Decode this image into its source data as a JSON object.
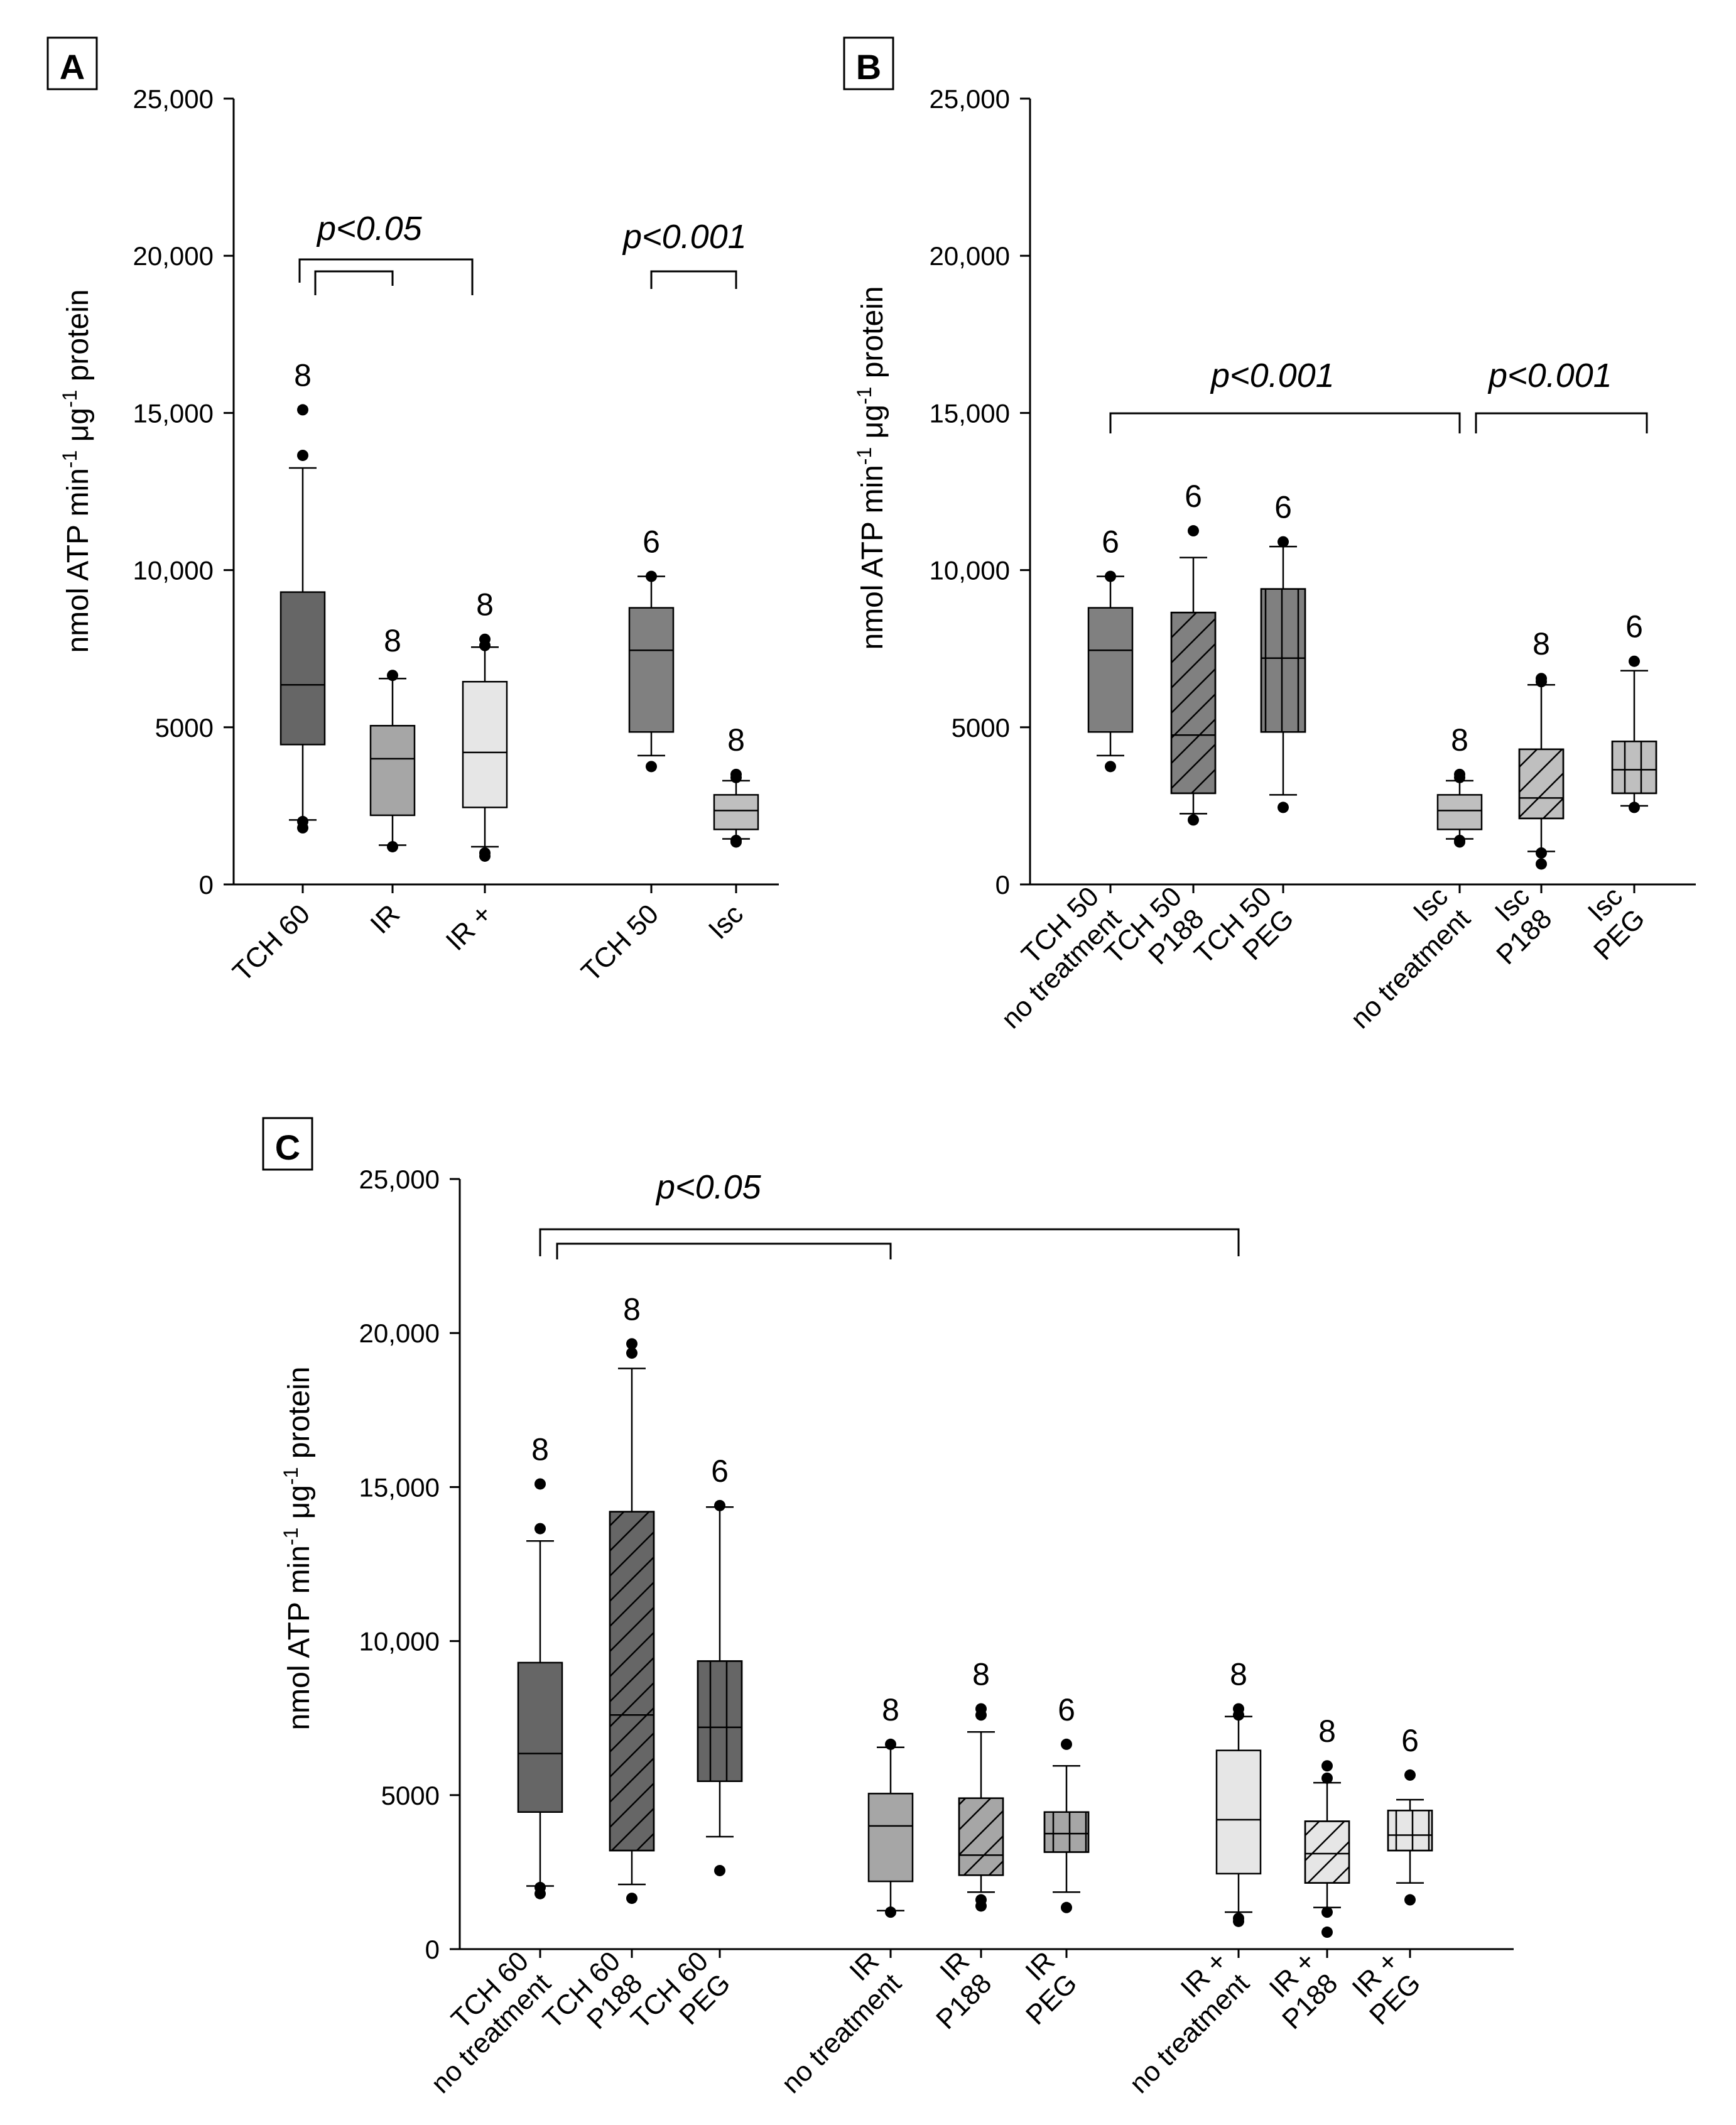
{
  "figure_caption": "",
  "colors": {
    "tch": "#666666",
    "ir": "#a6a6a6",
    "irplus": "#e6e6e6",
    "isc": "#bfbfbf",
    "axis": "#000000"
  },
  "chart_data": [
    {
      "panel": "A",
      "type": "boxplot",
      "ylabel": "nmol ATP min -1 μg -1 protein",
      "ylim": [
        0,
        25000
      ],
      "yticks": [
        0,
        5000,
        10000,
        15000,
        20000,
        25000
      ],
      "ytick_labels": [
        "0",
        "5000",
        "10,000",
        "15,000",
        "20,000",
        "25,000"
      ],
      "series": [
        {
          "label": "TCH 60",
          "n": "8",
          "q1": 4450,
          "median": 6350,
          "q3": 9300,
          "whisker_low": 2050,
          "whisker_high": 13250,
          "outliers": [
            1800,
            2000,
            13650,
            15100
          ],
          "color": "#666666",
          "pattern": "none"
        },
        {
          "label": "IR",
          "n": "8",
          "q1": 2200,
          "median": 4000,
          "q3": 5050,
          "whisker_low": 1250,
          "whisker_high": 6550,
          "outliers": [
            1200,
            6650
          ],
          "color": "#a6a6a6",
          "pattern": "none"
        },
        {
          "label": "IR +",
          "n": "8",
          "q1": 2450,
          "median": 4200,
          "q3": 6450,
          "whisker_low": 1200,
          "whisker_high": 7550,
          "outliers": [
            900,
            1000,
            7600,
            7800
          ],
          "color": "#e6e6e6",
          "pattern": "none"
        },
        {
          "label": "TCH 50",
          "n": "6",
          "q1": 4850,
          "median": 7450,
          "q3": 8800,
          "whisker_low": 4100,
          "whisker_high": 9800,
          "outliers": [
            3750,
            9800
          ],
          "color": "#808080",
          "pattern": "none"
        },
        {
          "label": "Isc",
          "n": "8",
          "q1": 1750,
          "median": 2350,
          "q3": 2850,
          "whisker_low": 1450,
          "whisker_high": 3300,
          "outliers": [
            1350,
            1400,
            3400,
            3500
          ],
          "color": "#bfbfbf",
          "pattern": "none"
        }
      ],
      "annotations": [
        {
          "text": "p<0.05",
          "kind": "bracket-nested"
        },
        {
          "text": "p<0.001",
          "kind": "bracket"
        }
      ]
    },
    {
      "panel": "B",
      "type": "boxplot",
      "ylabel": "nmol ATP min -1 μg -1 protein",
      "ylim": [
        0,
        25000
      ],
      "yticks": [
        0,
        5000,
        10000,
        15000,
        20000,
        25000
      ],
      "ytick_labels": [
        "0",
        "5000",
        "10,000",
        "15,000",
        "20,000",
        "25,000"
      ],
      "series": [
        {
          "label": [
            "TCH 50",
            "no treatment"
          ],
          "n": "6",
          "q1": 4850,
          "median": 7450,
          "q3": 8800,
          "whisker_low": 4100,
          "whisker_high": 9800,
          "outliers": [
            3750,
            9800
          ],
          "color": "#808080",
          "pattern": "none"
        },
        {
          "label": [
            "TCH 50",
            "P188"
          ],
          "n": "6",
          "q1": 2900,
          "median": 4750,
          "q3": 8650,
          "whisker_low": 2250,
          "whisker_high": 10400,
          "outliers": [
            2050,
            11250
          ],
          "color": "#808080",
          "pattern": "diagonal"
        },
        {
          "label": [
            "TCH 50",
            "PEG"
          ],
          "n": "6",
          "q1": 4850,
          "median": 7200,
          "q3": 9400,
          "whisker_low": 2850,
          "whisker_high": 10750,
          "outliers": [
            2450,
            10900
          ],
          "color": "#808080",
          "pattern": "vertical"
        },
        {
          "label": [
            "Isc",
            "no treatment"
          ],
          "n": "8",
          "q1": 1750,
          "median": 2350,
          "q3": 2850,
          "whisker_low": 1450,
          "whisker_high": 3300,
          "outliers": [
            1350,
            1400,
            3400,
            3500
          ],
          "color": "#bfbfbf",
          "pattern": "none"
        },
        {
          "label": [
            "Isc",
            "P188"
          ],
          "n": "8",
          "q1": 2100,
          "median": 2750,
          "q3": 4300,
          "whisker_low": 1050,
          "whisker_high": 6350,
          "outliers": [
            650,
            1000,
            6450,
            6550
          ],
          "color": "#bfbfbf",
          "pattern": "diagonal"
        },
        {
          "label": [
            "Isc",
            "PEG"
          ],
          "n": "6",
          "q1": 2900,
          "median": 3650,
          "q3": 4550,
          "whisker_low": 2500,
          "whisker_high": 6800,
          "outliers": [
            2450,
            7100
          ],
          "color": "#bfbfbf",
          "pattern": "vertical"
        }
      ],
      "annotations": [
        {
          "text": "p<0.001",
          "kind": "bracket"
        },
        {
          "text": "p<0.001",
          "kind": "bracket"
        }
      ]
    },
    {
      "panel": "C",
      "type": "boxplot",
      "ylabel": "nmol ATP min -1 μg -1 protein",
      "ylim": [
        0,
        25000
      ],
      "yticks": [
        0,
        5000,
        10000,
        15000,
        20000,
        25000
      ],
      "ytick_labels": [
        "0",
        "5000",
        "10,000",
        "15,000",
        "20,000",
        "25,000"
      ],
      "series": [
        {
          "label": [
            "TCH 60",
            "no treatment"
          ],
          "n": "8",
          "q1": 4450,
          "median": 6350,
          "q3": 9300,
          "whisker_low": 2050,
          "whisker_high": 13250,
          "outliers": [
            1800,
            2000,
            13650,
            15100
          ],
          "color": "#666666",
          "pattern": "none"
        },
        {
          "label": [
            "TCH 60",
            "P188"
          ],
          "n": "8",
          "q1": 3200,
          "median": 7600,
          "q3": 14200,
          "whisker_low": 2100,
          "whisker_high": 18850,
          "outliers": [
            1650,
            19350,
            19650
          ],
          "color": "#666666",
          "pattern": "diagonal"
        },
        {
          "label": [
            "TCH 60",
            "PEG"
          ],
          "n": "6",
          "q1": 5450,
          "median": 7200,
          "q3": 9350,
          "whisker_low": 3650,
          "whisker_high": 14350,
          "outliers": [
            2550,
            14400
          ],
          "color": "#666666",
          "pattern": "vertical"
        },
        {
          "label": [
            "IR",
            "no treatment"
          ],
          "n": "8",
          "q1": 2200,
          "median": 4000,
          "q3": 5050,
          "whisker_low": 1250,
          "whisker_high": 6550,
          "outliers": [
            1200,
            6650
          ],
          "color": "#a6a6a6",
          "pattern": "none"
        },
        {
          "label": [
            "IR",
            "P188"
          ],
          "n": "8",
          "q1": 2400,
          "median": 3050,
          "q3": 4900,
          "whisker_low": 1850,
          "whisker_high": 7050,
          "outliers": [
            1400,
            1600,
            7600,
            7800
          ],
          "color": "#a6a6a6",
          "pattern": "diagonal"
        },
        {
          "label": [
            "IR",
            "PEG"
          ],
          "n": "6",
          "q1": 3150,
          "median": 3750,
          "q3": 4450,
          "whisker_low": 1850,
          "whisker_high": 5950,
          "outliers": [
            1350,
            6650
          ],
          "color": "#a6a6a6",
          "pattern": "vertical"
        },
        {
          "label": [
            "IR +",
            "no treatment"
          ],
          "n": "8",
          "q1": 2450,
          "median": 4200,
          "q3": 6450,
          "whisker_low": 1200,
          "whisker_high": 7550,
          "outliers": [
            900,
            1000,
            7600,
            7800
          ],
          "color": "#e6e6e6",
          "pattern": "none"
        },
        {
          "label": [
            "IR +",
            "P188"
          ],
          "n": "8",
          "q1": 2150,
          "median": 3100,
          "q3": 4150,
          "whisker_low": 1350,
          "whisker_high": 5400,
          "outliers": [
            550,
            1200,
            5550,
            5950
          ],
          "color": "#e6e6e6",
          "pattern": "diagonal"
        },
        {
          "label": [
            "IR +",
            "PEG"
          ],
          "n": "6",
          "q1": 3200,
          "median": 3700,
          "q3": 4500,
          "whisker_low": 2150,
          "whisker_high": 4850,
          "outliers": [
            1600,
            5650
          ],
          "color": "#e6e6e6",
          "pattern": "vertical"
        }
      ],
      "annotations": [
        {
          "text": "p<0.05",
          "kind": "bracket-nested"
        }
      ]
    }
  ]
}
